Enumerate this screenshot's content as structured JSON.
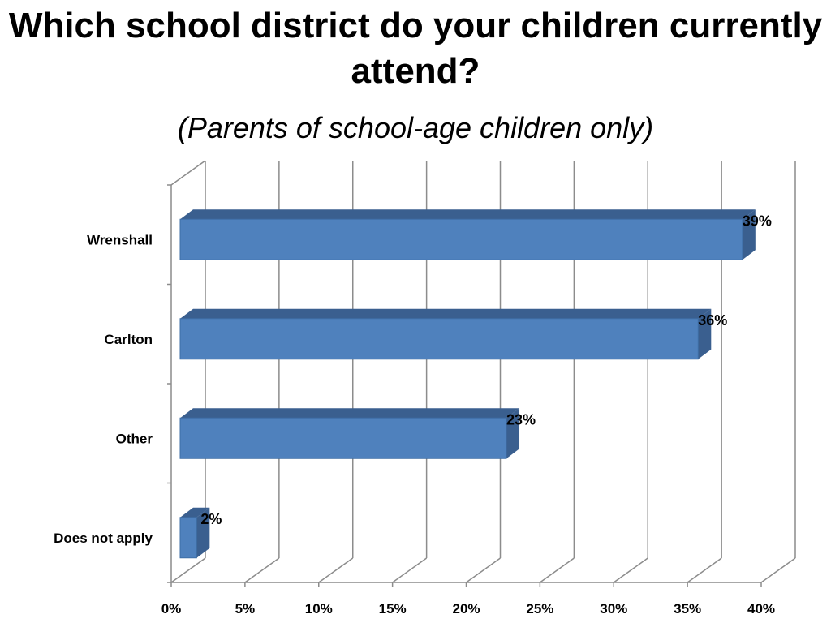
{
  "title": "Which school district do your children currently attend?",
  "subtitle": "(Parents of school-age children only)",
  "colors": {
    "bar_front": "#4f81bd",
    "bar_top": "#6b95c9",
    "bar_side": "#3a5f8f",
    "grid": "#8c8c8c"
  },
  "chart_data": {
    "type": "bar",
    "orientation": "horizontal",
    "style": "3d",
    "title": "Which school district do your children currently attend?",
    "subtitle": "(Parents of school-age children only)",
    "categories": [
      "Wrenshall",
      "Carlton",
      "Other",
      "Does not apply"
    ],
    "values": [
      39,
      36,
      23,
      2
    ],
    "data_labels": [
      "39%",
      "36%",
      "23%",
      "2%"
    ],
    "xlim": [
      0,
      40
    ],
    "xticks": [
      0,
      5,
      10,
      15,
      20,
      25,
      30,
      35,
      40
    ],
    "xtick_labels": [
      "0%",
      "5%",
      "10%",
      "15%",
      "20%",
      "25%",
      "30%",
      "35%",
      "40%"
    ],
    "grid": true,
    "legend": "none"
  }
}
